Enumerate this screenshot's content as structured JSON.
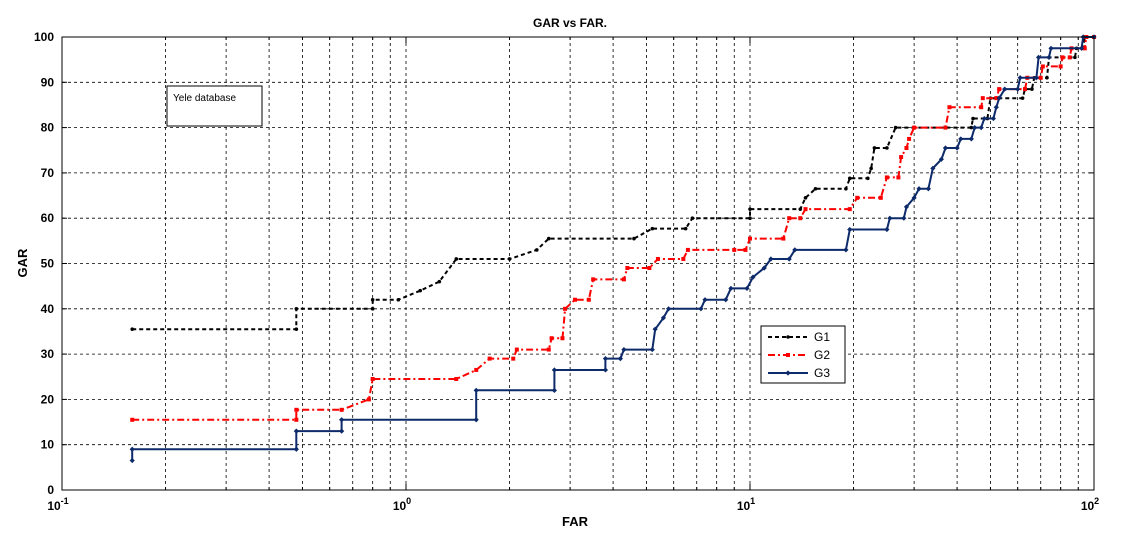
{
  "chart_data": {
    "type": "line",
    "title": "GAR vs FAR.",
    "xlabel": "FAR",
    "ylabel": "GAR",
    "xscale": "log",
    "xlim": [
      0.1,
      100
    ],
    "ylim": [
      0,
      100
    ],
    "grid": true,
    "annotation": "Yele database",
    "xticks": [
      {
        "value": 0.1,
        "base": "10",
        "exp": "-1"
      },
      {
        "value": 1,
        "base": "10",
        "exp": "0"
      },
      {
        "value": 10,
        "base": "10",
        "exp": "1"
      },
      {
        "value": 100,
        "base": "10",
        "exp": "2"
      }
    ],
    "yticks": [
      0,
      10,
      20,
      30,
      40,
      50,
      60,
      70,
      80,
      90,
      100
    ],
    "legend": {
      "placement": "center-right"
    },
    "series": [
      {
        "name": "G1",
        "color": "#000000",
        "linestyle": "dashed",
        "marker": "dot",
        "points": [
          [
            0.16,
            35.5
          ],
          [
            0.48,
            35.5
          ],
          [
            0.48,
            40
          ],
          [
            0.8,
            40
          ],
          [
            0.8,
            42
          ],
          [
            0.95,
            42
          ],
          [
            1.1,
            44
          ],
          [
            1.25,
            46
          ],
          [
            1.4,
            51
          ],
          [
            2.0,
            51
          ],
          [
            2.4,
            53
          ],
          [
            2.6,
            55.5
          ],
          [
            4.6,
            55.5
          ],
          [
            5.2,
            57.7
          ],
          [
            6.5,
            57.7
          ],
          [
            6.8,
            60
          ],
          [
            10,
            60
          ],
          [
            10,
            62
          ],
          [
            14,
            62
          ],
          [
            14.5,
            64.5
          ],
          [
            15.5,
            66.5
          ],
          [
            19,
            66.5
          ],
          [
            19.5,
            68.8
          ],
          [
            22,
            68.8
          ],
          [
            22.5,
            71
          ],
          [
            23,
            75.5
          ],
          [
            25,
            75.5
          ],
          [
            26.5,
            80
          ],
          [
            44,
            80
          ],
          [
            44.5,
            82
          ],
          [
            49,
            82
          ],
          [
            50,
            86.5
          ],
          [
            62,
            86.5
          ],
          [
            63,
            88.5
          ],
          [
            66,
            88.5
          ],
          [
            67,
            91
          ],
          [
            73,
            91
          ],
          [
            74,
            95.5
          ],
          [
            88,
            95.5
          ],
          [
            89,
            97.5
          ],
          [
            93,
            97.5
          ],
          [
            94,
            100
          ],
          [
            100,
            100
          ]
        ]
      },
      {
        "name": "G2",
        "color": "#ff0000",
        "linestyle": "dashdot",
        "marker": "square",
        "points": [
          [
            0.16,
            15.5
          ],
          [
            0.48,
            15.5
          ],
          [
            0.48,
            17.7
          ],
          [
            0.65,
            17.7
          ],
          [
            0.78,
            20
          ],
          [
            0.8,
            24.5
          ],
          [
            1.4,
            24.5
          ],
          [
            1.6,
            26.5
          ],
          [
            1.75,
            29
          ],
          [
            2.05,
            29
          ],
          [
            2.1,
            31
          ],
          [
            2.6,
            31
          ],
          [
            2.65,
            33.5
          ],
          [
            2.85,
            33.5
          ],
          [
            2.9,
            40
          ],
          [
            3.1,
            42
          ],
          [
            3.4,
            42
          ],
          [
            3.5,
            46.5
          ],
          [
            4.3,
            46.5
          ],
          [
            4.4,
            49
          ],
          [
            5.1,
            49
          ],
          [
            5.4,
            51
          ],
          [
            6.4,
            51
          ],
          [
            6.6,
            53
          ],
          [
            9,
            53
          ],
          [
            9.7,
            53
          ],
          [
            10,
            55.5
          ],
          [
            12.5,
            55.5
          ],
          [
            13,
            60
          ],
          [
            14,
            60
          ],
          [
            14.5,
            62
          ],
          [
            19.5,
            62
          ],
          [
            20.5,
            64.5
          ],
          [
            24,
            64.5
          ],
          [
            25,
            69
          ],
          [
            27,
            69
          ],
          [
            27.5,
            73.5
          ],
          [
            28.5,
            75.5
          ],
          [
            29,
            77.5
          ],
          [
            30,
            80
          ],
          [
            37,
            80
          ],
          [
            38,
            84.5
          ],
          [
            47,
            84.5
          ],
          [
            47.5,
            86.5
          ],
          [
            52,
            86.5
          ],
          [
            53,
            88.5
          ],
          [
            63,
            88.5
          ],
          [
            64,
            91
          ],
          [
            70,
            91
          ],
          [
            71,
            93.5
          ],
          [
            80,
            93.5
          ],
          [
            81,
            95.5
          ],
          [
            85,
            95.5
          ],
          [
            86,
            97.5
          ],
          [
            94,
            97.5
          ],
          [
            95,
            100
          ],
          [
            100,
            100
          ]
        ]
      },
      {
        "name": "G3",
        "color": "#0d2a6b",
        "linestyle": "solid",
        "marker": "diamond",
        "points": [
          [
            0.16,
            6.5
          ],
          [
            0.16,
            9
          ],
          [
            0.48,
            9
          ],
          [
            0.48,
            13
          ],
          [
            0.65,
            13
          ],
          [
            0.65,
            15.5
          ],
          [
            1.6,
            15.5
          ],
          [
            1.6,
            22
          ],
          [
            2.7,
            22
          ],
          [
            2.7,
            26.5
          ],
          [
            3.8,
            26.5
          ],
          [
            3.8,
            29
          ],
          [
            4.2,
            29
          ],
          [
            4.3,
            31
          ],
          [
            5.2,
            31
          ],
          [
            5.3,
            35.5
          ],
          [
            5.6,
            38
          ],
          [
            5.8,
            40
          ],
          [
            7.2,
            40
          ],
          [
            7.4,
            42
          ],
          [
            8.5,
            42
          ],
          [
            8.8,
            44.5
          ],
          [
            9.8,
            44.5
          ],
          [
            10.2,
            47
          ],
          [
            11,
            49
          ],
          [
            11.5,
            51
          ],
          [
            13,
            51
          ],
          [
            13.5,
            53
          ],
          [
            19,
            53
          ],
          [
            19.5,
            57.5
          ],
          [
            25,
            57.5
          ],
          [
            25.5,
            60
          ],
          [
            28,
            60
          ],
          [
            28.5,
            62.5
          ],
          [
            30,
            64.5
          ],
          [
            31,
            66.5
          ],
          [
            33,
            66.5
          ],
          [
            34,
            71
          ],
          [
            36,
            73
          ],
          [
            37,
            75.5
          ],
          [
            40,
            75.5
          ],
          [
            41,
            77.5
          ],
          [
            44,
            77.5
          ],
          [
            45,
            80
          ],
          [
            47,
            80
          ],
          [
            48,
            82
          ],
          [
            51,
            82
          ],
          [
            52,
            84.5
          ],
          [
            53,
            86.5
          ],
          [
            55,
            88.5
          ],
          [
            60,
            88.5
          ],
          [
            61,
            91
          ],
          [
            68,
            91
          ],
          [
            69,
            95.5
          ],
          [
            74,
            95.5
          ],
          [
            75,
            97.5
          ],
          [
            92,
            97.5
          ],
          [
            93,
            100
          ],
          [
            100,
            100
          ]
        ]
      }
    ]
  }
}
